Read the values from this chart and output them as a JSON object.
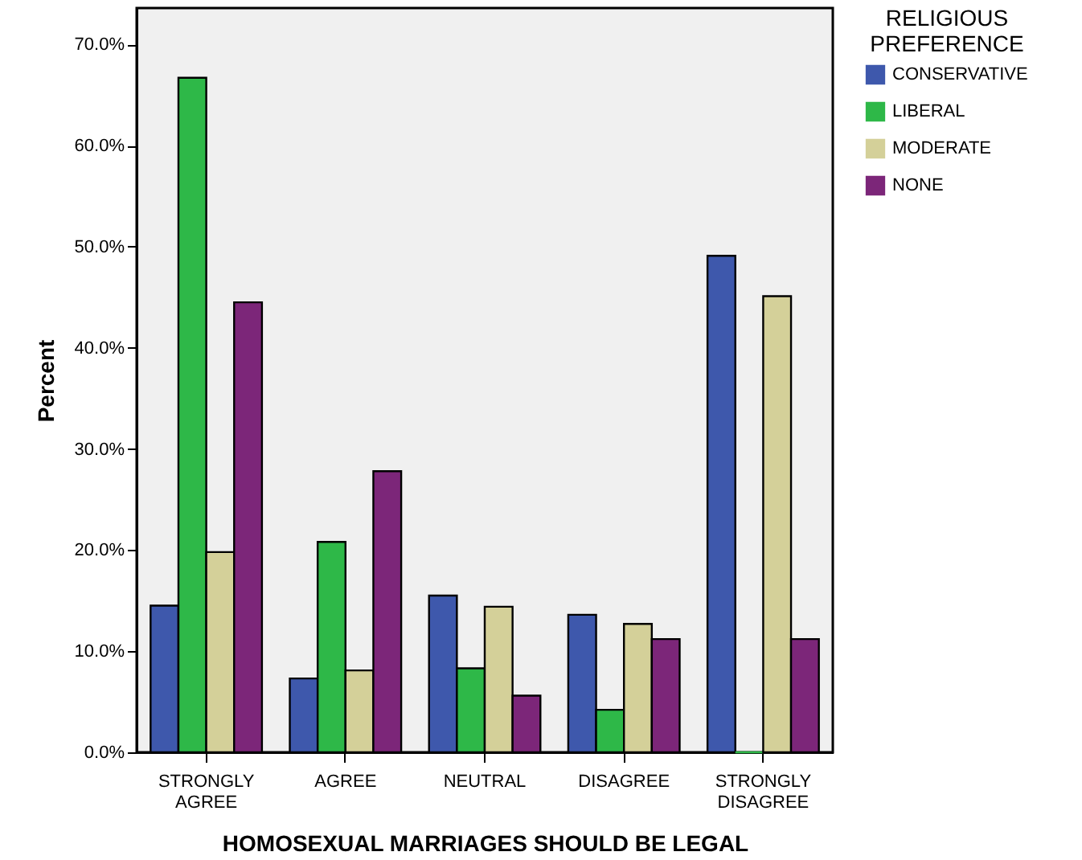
{
  "chart_data": {
    "type": "bar",
    "xlabel": "HOMOSEXUAL MARRIAGES SHOULD BE LEGAL",
    "ylabel": "Percent",
    "legend_title": "RELIGIOUS PREFERENCE",
    "categories": [
      "STRONGLY AGREE",
      "AGREE",
      "NEUTRAL",
      "DISAGREE",
      "STRONGLY DISAGREE"
    ],
    "series": [
      {
        "name": "CONSERVATIVE",
        "color": "#3e58ac",
        "values": [
          14.5,
          7.3,
          15.5,
          13.6,
          49.1
        ]
      },
      {
        "name": "LIBERAL",
        "color": "#2eb848",
        "values": [
          66.7,
          20.8,
          8.3,
          4.2,
          0
        ]
      },
      {
        "name": "MODERATE",
        "color": "#d4d099",
        "values": [
          19.8,
          8.1,
          14.4,
          12.7,
          45.1
        ]
      },
      {
        "name": "NONE",
        "color": "#7c2679",
        "values": [
          44.5,
          27.8,
          5.6,
          11.2,
          11.2
        ]
      }
    ],
    "ylim": [
      0,
      73.6
    ],
    "yticks": [
      {
        "value": 0,
        "label": "0.0%"
      },
      {
        "value": 10,
        "label": "10.0%"
      },
      {
        "value": 20,
        "label": "20.0%"
      },
      {
        "value": 30,
        "label": "30.0%"
      },
      {
        "value": 40,
        "label": "40.0%"
      },
      {
        "value": 50,
        "label": "50.0%"
      },
      {
        "value": 60,
        "label": "60.0%"
      },
      {
        "value": 70,
        "label": "70.0%"
      }
    ],
    "grid": false,
    "legend": "top right"
  }
}
